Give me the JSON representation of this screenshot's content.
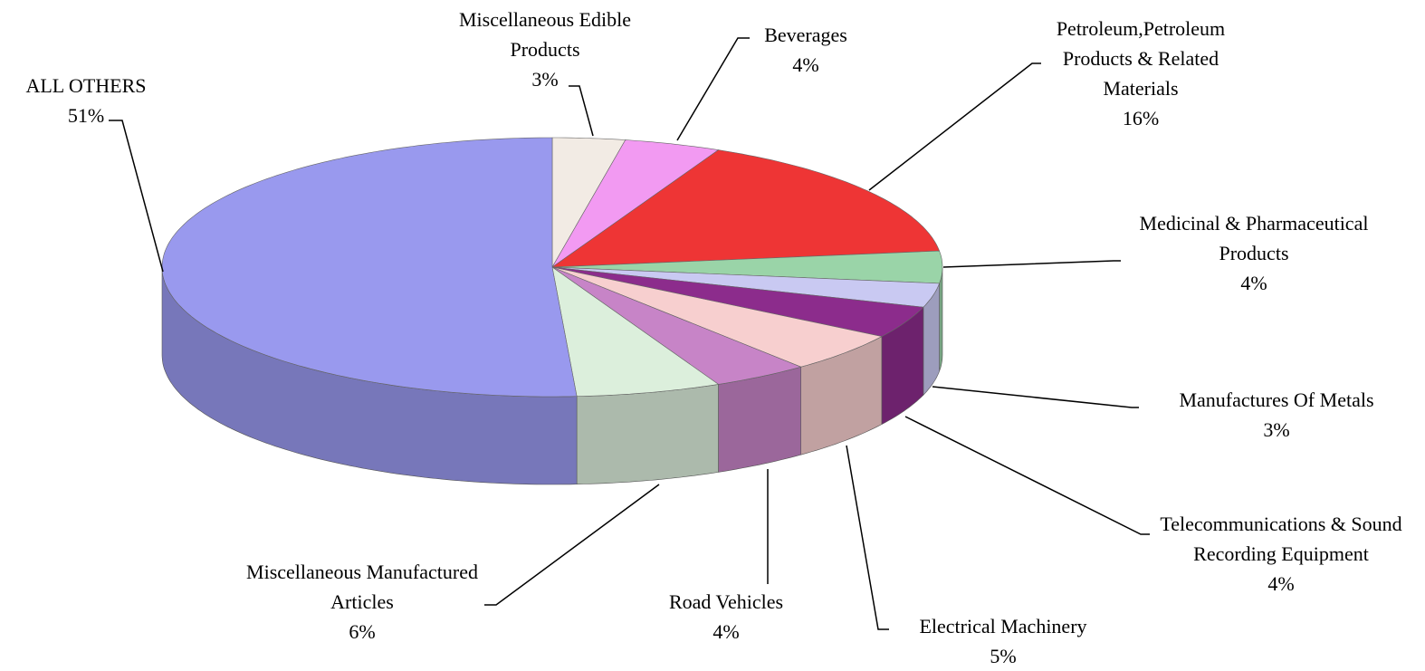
{
  "chart_data": {
    "type": "pie",
    "categories": [
      "Miscellaneous Edible Products",
      "Beverages",
      "Petroleum,Petroleum Products & Related Materials",
      "Medicinal & Pharmaceutical Products",
      "Manufactures Of Metals",
      "Telecommunications & Sound Recording Equipment",
      "Electrical Machinery",
      "Road Vehicles",
      "Miscellaneous Manufactured Articles",
      "ALL OTHERS"
    ],
    "values": [
      3,
      4,
      16,
      4,
      3,
      4,
      5,
      4,
      6,
      51
    ],
    "value_labels": [
      "3%",
      "4%",
      "16%",
      "4%",
      "3%",
      "4%",
      "5%",
      "4%",
      "6%",
      "51%"
    ],
    "colors": [
      "#f2ebe4",
      "#f29af2",
      "#ee3535",
      "#9ad4a8",
      "#c9c9f2",
      "#8c2c8c",
      "#f7cfcf",
      "#c784c7",
      "#dcefdc",
      "#9999ee"
    ]
  }
}
